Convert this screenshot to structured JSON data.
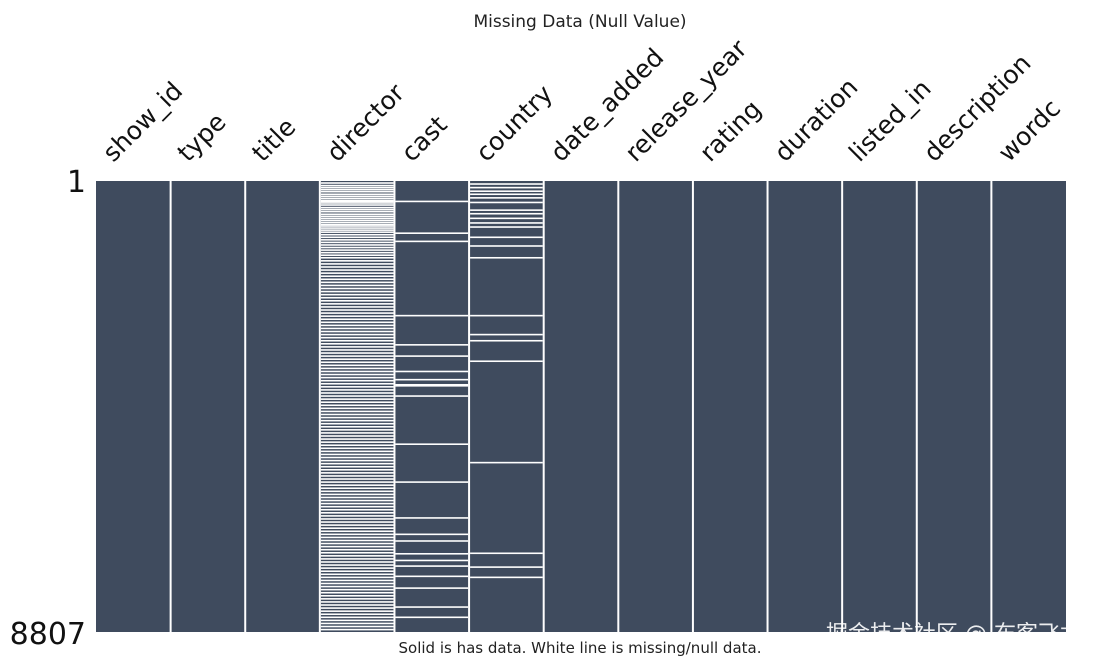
{
  "chart_data": {
    "type": "heatmap",
    "title": "Missing Data (Null Value)",
    "caption": "Solid is has data. White line is missing/null data.",
    "columns": [
      "show_id",
      "type",
      "title",
      "director",
      "cast",
      "country",
      "date_added",
      "release_year",
      "rating",
      "duration",
      "listed_in",
      "description",
      "wordc"
    ],
    "row_labels": [
      "1",
      "8807"
    ],
    "row_range": [
      1,
      8807
    ],
    "fill_color": "#3f4b5e",
    "missing_color": "#ffffff",
    "missing_rows": {
      "director": [
        40,
        90,
        130,
        170,
        210,
        260,
        300,
        340,
        380,
        400,
        430,
        470,
        520,
        560,
        600,
        650,
        690,
        730,
        770,
        810,
        850,
        880,
        920,
        960,
        1000,
        1050,
        1100,
        1150,
        1200,
        1250,
        1300,
        1350,
        1400,
        1450,
        1500,
        1560,
        1620,
        1680,
        1740,
        1800,
        1860,
        1920,
        1980,
        2040,
        2100,
        2160,
        2220,
        2280,
        2340,
        2400,
        2460,
        2520,
        2580,
        2640,
        2700,
        2760,
        2820,
        2880,
        2940,
        3000,
        3060,
        3120,
        3180,
        3240,
        3300,
        3360,
        3420,
        3480,
        3540,
        3600,
        3660,
        3720,
        3780,
        3840,
        3900,
        3960,
        4020,
        4080,
        4140,
        4200,
        4260,
        4320,
        4380,
        4440,
        4500,
        4560,
        4620,
        4680,
        4740,
        4800,
        4860,
        4920,
        4980,
        5040,
        5100,
        5160,
        5220,
        5280,
        5340,
        5400,
        5460,
        5520,
        5580,
        5640,
        5700,
        5760,
        5820,
        5880,
        5940,
        6000,
        6060,
        6120,
        6180,
        6240,
        6300,
        6360,
        6420,
        6480,
        6540,
        6600,
        6660,
        6720,
        6780,
        6840,
        6900,
        6960,
        7020,
        7080,
        7140,
        7200,
        7260,
        7320,
        7380,
        7440,
        7500,
        7560,
        7620,
        7680,
        7740,
        7800,
        7860,
        7920,
        7980,
        8040,
        8100,
        8160,
        8220,
        8280,
        8340,
        8400,
        8460,
        8520,
        8580,
        8640,
        8700,
        8760
      ],
      "cast": [
        400,
        1020,
        1180,
        2630,
        3200,
        3420,
        3720,
        3880,
        3980,
        4000,
        4200,
        5140,
        5880,
        6580,
        6900,
        7030,
        7280,
        7410,
        7520,
        7720,
        7950,
        8320,
        8520
      ],
      "country": [
        60,
        130,
        200,
        260,
        330,
        420,
        570,
        640,
        730,
        820,
        900,
        1100,
        1270,
        1500,
        2630,
        3000,
        3120,
        3520,
        5500,
        7270,
        7540,
        7740
      ]
    }
  },
  "watermark": "掘金技术社区 @ 布客飞龙"
}
